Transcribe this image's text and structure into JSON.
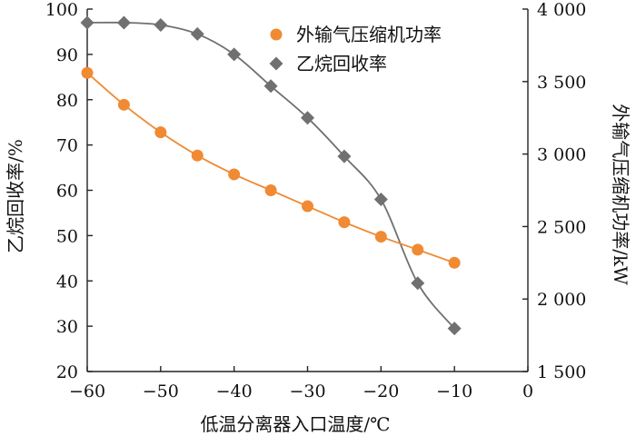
{
  "chart_data": {
    "type": "line",
    "xlabel": "低温分离器入口温度/℃",
    "ylabel_left": "乙烷回收率/%",
    "ylabel_right": "外输气压缩机功率/kW",
    "xlim": [
      -60,
      0
    ],
    "ylim_left": [
      20,
      100
    ],
    "ylim_right": [
      1500,
      4000
    ],
    "x_ticks": [
      -60,
      -50,
      -40,
      -30,
      -20,
      -10,
      0
    ],
    "x_tick_labels": [
      "−60",
      "−50",
      "−40",
      "−30",
      "−20",
      "−10",
      "0"
    ],
    "y_left_ticks": [
      20,
      30,
      40,
      50,
      60,
      70,
      80,
      90,
      100
    ],
    "y_left_tick_labels": [
      "20",
      "30",
      "40",
      "50",
      "60",
      "70",
      "80",
      "90",
      "100"
    ],
    "y_right_ticks": [
      1500,
      2000,
      2500,
      3000,
      3500,
      4000
    ],
    "y_right_tick_labels": [
      "1 500",
      "2 000",
      "2 500",
      "3 000",
      "3 500",
      "4 000"
    ],
    "legend_position": "top-right",
    "grid": false,
    "series": [
      {
        "name": "外输气压缩机功率",
        "axis": "right",
        "marker": "circle",
        "color": "#f08a33",
        "x": [
          -60,
          -55,
          -50,
          -45,
          -40,
          -35,
          -30,
          -25,
          -20,
          -15,
          -10
        ],
        "y": [
          3560,
          3340,
          3150,
          2990,
          2860,
          2750,
          2640,
          2530,
          2430,
          2340,
          2250
        ]
      },
      {
        "name": "乙烷回收率",
        "axis": "left",
        "marker": "diamond",
        "color": "#707070",
        "x": [
          -60,
          -55,
          -50,
          -45,
          -40,
          -35,
          -30,
          -25,
          -20,
          -15,
          -10
        ],
        "y": [
          97,
          97,
          96.5,
          94.5,
          90,
          83,
          76,
          67.5,
          58,
          39.5,
          29.5
        ]
      }
    ]
  }
}
